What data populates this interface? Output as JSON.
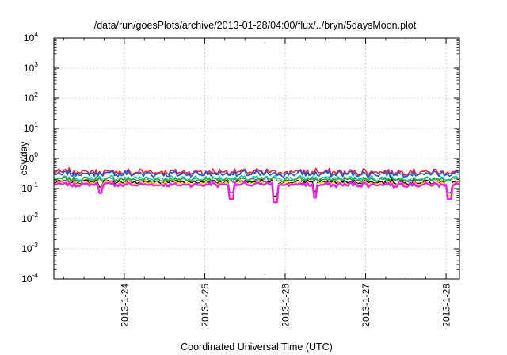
{
  "chart_data": {
    "type": "line",
    "title": "/data/run/goesPlots/archive/2013-01-28/04:00/flux/../bryn/5daysMoon.plot",
    "xlabel": "Coordinated Universal Time (UTC)",
    "ylabel": "cSv/day",
    "yscale": "log",
    "ylim": [
      0.0001,
      10000
    ],
    "xlim": [
      "2013-01-23T03:00",
      "2013-01-28T04:00"
    ],
    "y_ticks": [
      {
        "base": "10",
        "exp": "-4"
      },
      {
        "base": "10",
        "exp": "-3"
      },
      {
        "base": "10",
        "exp": "-2"
      },
      {
        "base": "10",
        "exp": "-1"
      },
      {
        "base": "10",
        "exp": "0"
      },
      {
        "base": "10",
        "exp": "1"
      },
      {
        "base": "10",
        "exp": "2"
      },
      {
        "base": "10",
        "exp": "3"
      },
      {
        "base": "10",
        "exp": "4"
      }
    ],
    "x_ticks": [
      "2013-1-24",
      "2013-1-25",
      "2013-1-26",
      "2013-1-27",
      "2013-1-28"
    ],
    "grid": true,
    "legend": "none",
    "series": [
      {
        "color": "#e8242a",
        "level": 0.36,
        "amp": 0.2
      },
      {
        "color": "#2b4fd6",
        "level": 0.31,
        "amp": 0.2
      },
      {
        "color": "#1fc0c0",
        "level": 0.22,
        "amp": 0.16
      },
      {
        "color": "#22a83a",
        "level": 0.2,
        "amp": 0.14
      },
      {
        "color": "#111111",
        "level": 0.165,
        "amp": 0.13
      },
      {
        "color": "#f2e200",
        "level": 0.15,
        "amp": 0.12
      },
      {
        "color": "#ff10ff",
        "level": 0.135,
        "amp": 0.14
      }
    ],
    "dips": [
      {
        "x": "2013-01-23T17:00",
        "y": 0.07
      },
      {
        "x": "2013-01-25T08:00",
        "y": 0.045
      },
      {
        "x": "2013-01-25T21:00",
        "y": 0.035
      },
      {
        "x": "2013-01-26T09:00",
        "y": 0.05
      },
      {
        "x": "2013-01-28T01:00",
        "y": 0.045
      }
    ]
  }
}
